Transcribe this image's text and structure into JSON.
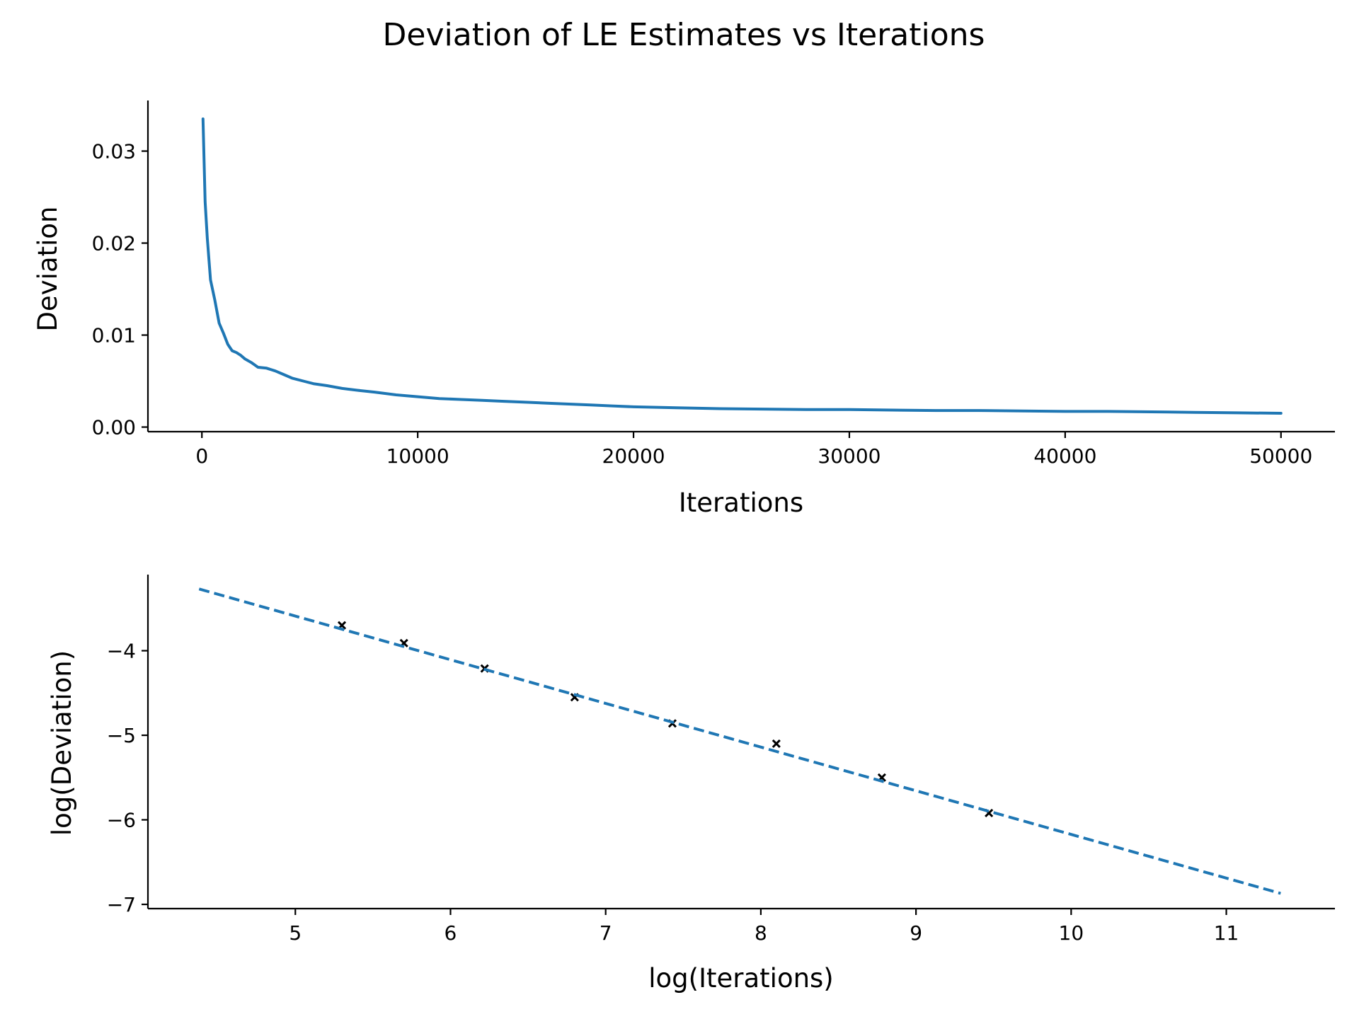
{
  "figure": {
    "title": "Deviation of LE Estimates vs Iterations"
  },
  "chart_data": [
    {
      "type": "line",
      "title": "",
      "xlabel": "Iterations",
      "ylabel": "Deviation",
      "xlim": [
        -2500,
        52500
      ],
      "ylim": [
        -0.0005,
        0.0355
      ],
      "xticks": [
        0,
        10000,
        20000,
        30000,
        40000,
        50000
      ],
      "xtick_labels": [
        "0",
        "10000",
        "20000",
        "30000",
        "40000",
        "50000"
      ],
      "yticks": [
        0.0,
        0.01,
        0.02,
        0.03
      ],
      "ytick_labels": [
        "0.00",
        "0.01",
        "0.02",
        "0.03"
      ],
      "grid": false,
      "series": [
        {
          "color": "#1f77b4",
          "style": "solid",
          "x": [
            50,
            150,
            250,
            400,
            600,
            800,
            1000,
            1200,
            1400,
            1600,
            1800,
            2000,
            2300,
            2600,
            3000,
            3400,
            3800,
            4200,
            4700,
            5200,
            5800,
            6500,
            7200,
            8000,
            9000,
            10000,
            11000,
            12000,
            13000,
            14000,
            15000,
            16000,
            17000,
            18000,
            19000,
            20000,
            22000,
            24000,
            26000,
            28000,
            30000,
            32000,
            34000,
            36000,
            38000,
            40000,
            42000,
            44000,
            46000,
            48000,
            50000
          ],
          "y": [
            0.0335,
            0.0245,
            0.0205,
            0.016,
            0.0138,
            0.0113,
            0.0102,
            0.009,
            0.0083,
            0.0081,
            0.0078,
            0.0074,
            0.007,
            0.0065,
            0.0064,
            0.0061,
            0.0057,
            0.0053,
            0.005,
            0.0047,
            0.0045,
            0.0042,
            0.004,
            0.0038,
            0.0035,
            0.0033,
            0.0031,
            0.003,
            0.0029,
            0.0028,
            0.0027,
            0.0026,
            0.0025,
            0.0024,
            0.0023,
            0.0022,
            0.0021,
            0.002,
            0.00195,
            0.0019,
            0.0019,
            0.00185,
            0.0018,
            0.0018,
            0.00175,
            0.0017,
            0.0017,
            0.00165,
            0.0016,
            0.00155,
            0.0015
          ]
        }
      ]
    },
    {
      "type": "scatter",
      "title": "",
      "xlabel": "log(Iterations)",
      "ylabel": "log(Deviation)",
      "xlim": [
        4.05,
        11.7
      ],
      "ylim": [
        -7.05,
        -3.1
      ],
      "xticks": [
        5,
        6,
        7,
        8,
        9,
        10,
        11
      ],
      "xtick_labels": [
        "5",
        "6",
        "7",
        "8",
        "9",
        "10",
        "11"
      ],
      "yticks": [
        -4,
        -5,
        -6,
        -7
      ],
      "ytick_labels": [
        "−4",
        "−5",
        "−6",
        "−7"
      ],
      "grid": false,
      "series": [
        {
          "color": "#000000",
          "marker": "x",
          "x": [
            5.3,
            5.7,
            6.22,
            6.8,
            7.43,
            8.1,
            8.78,
            9.47
          ],
          "y": [
            -3.7,
            -3.91,
            -4.21,
            -4.55,
            -4.86,
            -5.1,
            -5.5,
            -5.92
          ]
        },
        {
          "color": "#1f77b4",
          "style": "dashed",
          "x": [
            4.38,
            11.35
          ],
          "y": [
            -3.27,
            -6.87
          ]
        }
      ]
    }
  ]
}
